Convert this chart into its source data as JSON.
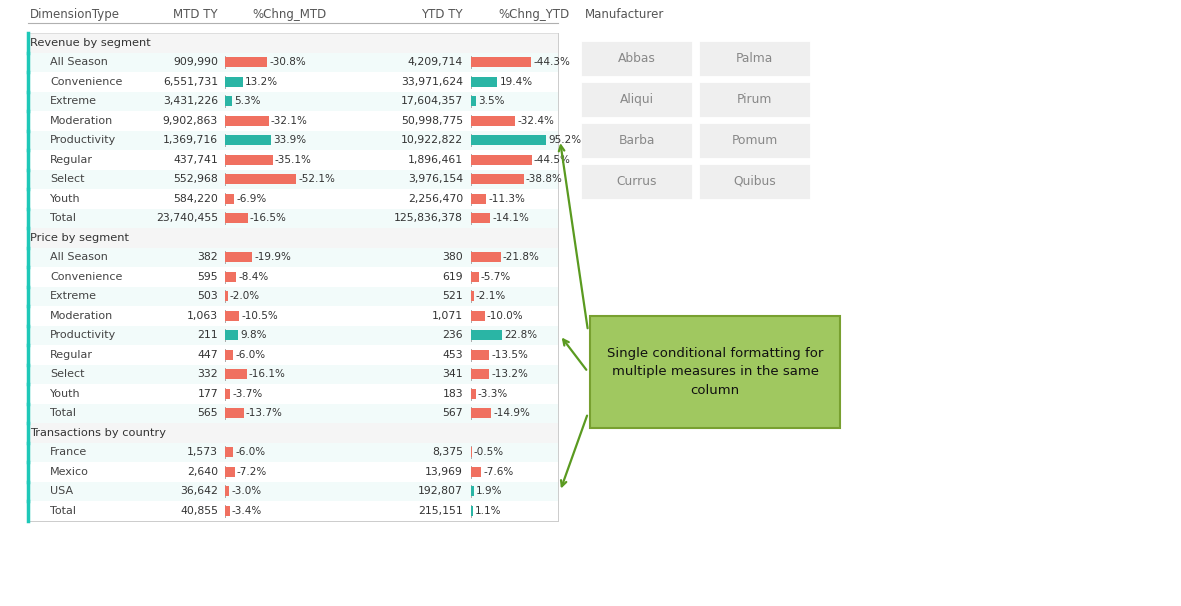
{
  "header": [
    "DimensionType",
    "MTD TY",
    "%Chng_MTD",
    "YTD TY",
    "%Chng_YTD"
  ],
  "sections": [
    {
      "title": "Revenue by segment",
      "rows": [
        {
          "label": "All Season",
          "mtd": "909,990",
          "pct_mtd": -30.8,
          "ytd": "4,209,714",
          "pct_ytd": -44.3
        },
        {
          "label": "Convenience",
          "mtd": "6,551,731",
          "pct_mtd": 13.2,
          "ytd": "33,971,624",
          "pct_ytd": 19.4
        },
        {
          "label": "Extreme",
          "mtd": "3,431,226",
          "pct_mtd": 5.3,
          "ytd": "17,604,357",
          "pct_ytd": 3.5
        },
        {
          "label": "Moderation",
          "mtd": "9,902,863",
          "pct_mtd": -32.1,
          "ytd": "50,998,775",
          "pct_ytd": -32.4
        },
        {
          "label": "Productivity",
          "mtd": "1,369,716",
          "pct_mtd": 33.9,
          "ytd": "10,922,822",
          "pct_ytd": 95.2
        },
        {
          "label": "Regular",
          "mtd": "437,741",
          "pct_mtd": -35.1,
          "ytd": "1,896,461",
          "pct_ytd": -44.5
        },
        {
          "label": "Select",
          "mtd": "552,968",
          "pct_mtd": -52.1,
          "ytd": "3,976,154",
          "pct_ytd": -38.8
        },
        {
          "label": "Youth",
          "mtd": "584,220",
          "pct_mtd": -6.9,
          "ytd": "2,256,470",
          "pct_ytd": -11.3
        },
        {
          "label": "Total",
          "mtd": "23,740,455",
          "pct_mtd": -16.5,
          "ytd": "125,836,378",
          "pct_ytd": -14.1
        }
      ]
    },
    {
      "title": "Price by segment",
      "rows": [
        {
          "label": "All Season",
          "mtd": "382",
          "pct_mtd": -19.9,
          "ytd": "380",
          "pct_ytd": -21.8
        },
        {
          "label": "Convenience",
          "mtd": "595",
          "pct_mtd": -8.4,
          "ytd": "619",
          "pct_ytd": -5.7
        },
        {
          "label": "Extreme",
          "mtd": "503",
          "pct_mtd": -2.0,
          "ytd": "521",
          "pct_ytd": -2.1
        },
        {
          "label": "Moderation",
          "mtd": "1,063",
          "pct_mtd": -10.5,
          "ytd": "1,071",
          "pct_ytd": -10.0
        },
        {
          "label": "Productivity",
          "mtd": "211",
          "pct_mtd": 9.8,
          "ytd": "236",
          "pct_ytd": 22.8
        },
        {
          "label": "Regular",
          "mtd": "447",
          "pct_mtd": -6.0,
          "ytd": "453",
          "pct_ytd": -13.5
        },
        {
          "label": "Select",
          "mtd": "332",
          "pct_mtd": -16.1,
          "ytd": "341",
          "pct_ytd": -13.2
        },
        {
          "label": "Youth",
          "mtd": "177",
          "pct_mtd": -3.7,
          "ytd": "183",
          "pct_ytd": -3.3
        },
        {
          "label": "Total",
          "mtd": "565",
          "pct_mtd": -13.7,
          "ytd": "567",
          "pct_ytd": -14.9
        }
      ]
    },
    {
      "title": "Transactions by country",
      "rows": [
        {
          "label": "France",
          "mtd": "1,573",
          "pct_mtd": -6.0,
          "ytd": "8,375",
          "pct_ytd": -0.5
        },
        {
          "label": "Mexico",
          "mtd": "2,640",
          "pct_mtd": -7.2,
          "ytd": "13,969",
          "pct_ytd": -7.6
        },
        {
          "label": "USA",
          "mtd": "36,642",
          "pct_mtd": -3.0,
          "ytd": "192,807",
          "pct_ytd": 1.9
        },
        {
          "label": "Total",
          "mtd": "40,855",
          "pct_mtd": -3.4,
          "ytd": "215,151",
          "pct_ytd": 1.1
        }
      ]
    }
  ],
  "manufacturer_title": "Manufacturer",
  "manufacturer_items": [
    [
      "Abbas",
      "Palma"
    ],
    [
      "Aliqui",
      "Pirum"
    ],
    [
      "Barba",
      "Pomum"
    ],
    [
      "Currus",
      "Quibus"
    ]
  ],
  "annotation_text": "Single conditional formatting for\nmultiple measures in the same\ncolumn",
  "bg_color": "#ffffff",
  "teal_color": "#2ab5a5",
  "red_color": "#f07060",
  "teal_border_color": "#1ec8b8"
}
